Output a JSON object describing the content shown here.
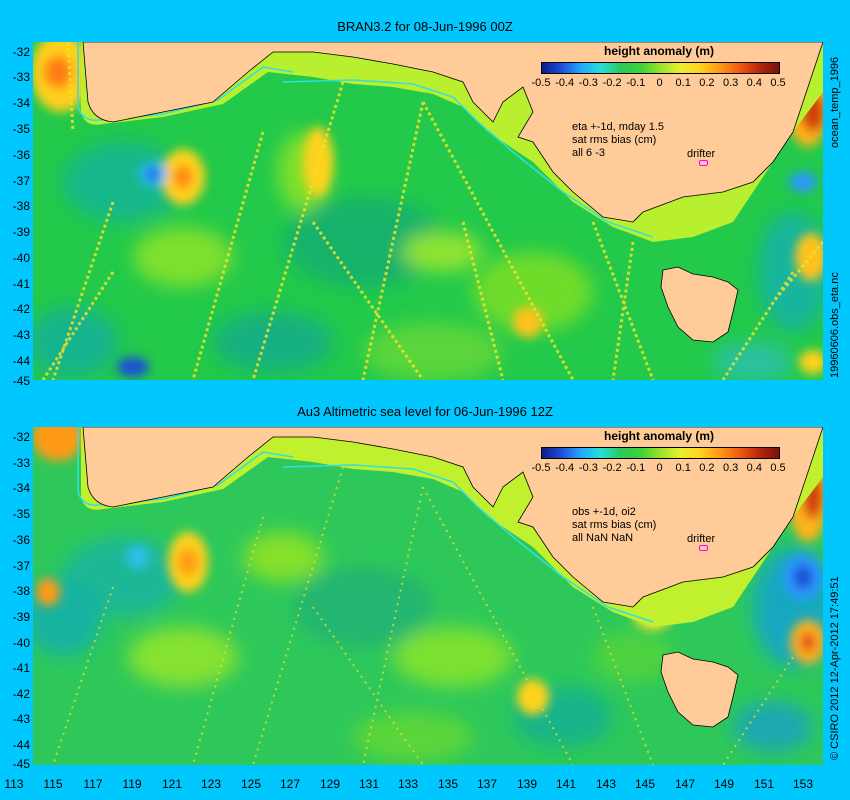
{
  "panels": [
    {
      "title": "BRAN3.2 for 08-Jun-1996 00Z",
      "colorbar_title": "height anomaly (m)",
      "info_lines": [
        "eta +-1d, mday 1.5",
        "sat rms bias (cm)",
        "all 6 -3"
      ],
      "drifter_label": "drifter"
    },
    {
      "title": "Au3 Altimetric sea level  for 06-Jun-1996 12Z",
      "colorbar_title": "height anomaly (m)",
      "info_lines": [
        "obs +-1d, oi2",
        "sat rms bias (cm)",
        "all NaN NaN"
      ],
      "drifter_label": "drifter"
    }
  ],
  "colorbar_ticks": [
    "-0.5",
    "-0.4",
    "-0.3",
    "-0.2",
    "-0.1",
    "0",
    "0.1",
    "0.2",
    "0.3",
    "0.4",
    "0.5"
  ],
  "y_labels": [
    "-32",
    "-33",
    "-34",
    "-35",
    "-36",
    "-37",
    "-38",
    "-39",
    "-40",
    "-41",
    "-42",
    "-43",
    "-44",
    "-45"
  ],
  "x_labels": [
    "113",
    "115",
    "117",
    "119",
    "121",
    "123",
    "125",
    "127",
    "129",
    "131",
    "133",
    "135",
    "137",
    "139",
    "141",
    "143",
    "145",
    "147",
    "149",
    "151",
    "153"
  ],
  "side_labels": {
    "top_upper": "ocean_temp_1996",
    "top_lower": "19960606.obs_eta.nc",
    "bottom": "© CSIRO 2012   12-Apr-2012 17:49:51"
  },
  "colors": {
    "background": "#00c8ff",
    "land": "#ffcc99",
    "ocean_base": "#22c94a",
    "shelf": "#b8ef2e",
    "drifter": "#ff00ff"
  }
}
